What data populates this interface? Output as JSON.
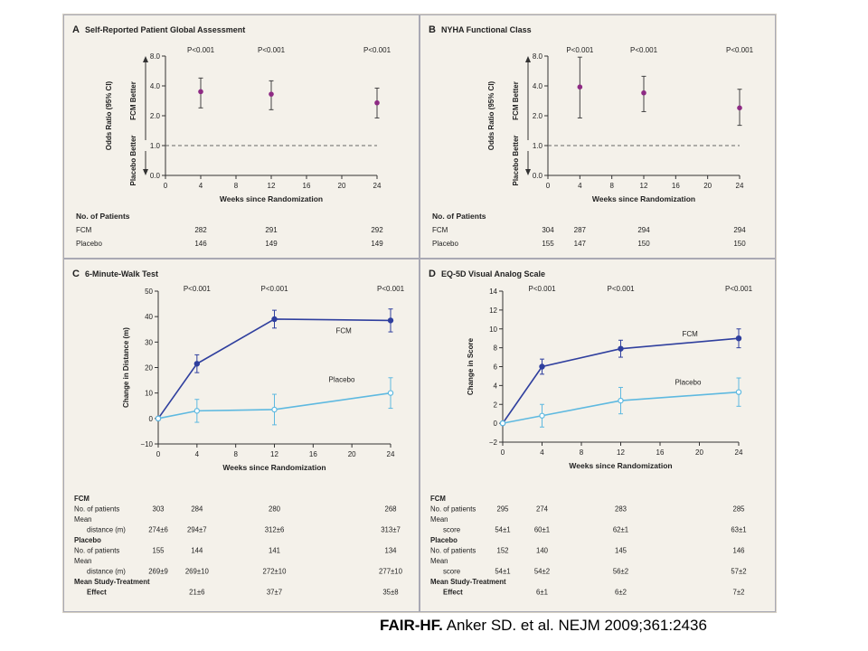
{
  "citation": {
    "study": "FAIR-HF.",
    "reference": "Anker SD. et al. NEJM 2009;361:2436"
  },
  "colors": {
    "purple": "#8e2a84",
    "fcm": "#2f3f9e",
    "placebo": "#5eb9e0",
    "frame": "#a9a9b4",
    "text": "#222222",
    "background": "#f4f1ea"
  },
  "chart_data": [
    {
      "panel": "A",
      "title": "Self-Reported Patient Global Assessment",
      "type": "scatter",
      "xlabel": "Weeks since Randomization",
      "ylabel": "Odds Ratio (95% CI)",
      "side_labels": {
        "upper": "FCM Better",
        "lower": "Placebo Better"
      },
      "xlim": [
        0,
        24
      ],
      "xticks": [
        0,
        4,
        8,
        12,
        16,
        20,
        24
      ],
      "ylim": [
        0,
        8
      ],
      "yscale": "log",
      "yticks": [
        "0.0",
        "1.0",
        "2.0",
        "4.0",
        "8.0"
      ],
      "reference_line": 1.0,
      "series": [
        {
          "x": [
            4,
            12,
            24
          ],
          "y": [
            3.5,
            3.3,
            2.7
          ],
          "lower": [
            2.4,
            2.3,
            1.9
          ],
          "upper": [
            4.8,
            4.5,
            3.8
          ]
        }
      ],
      "pvalues": [
        "P<0.001",
        "P<0.001",
        "P<0.001"
      ],
      "table": {
        "title": "No. of Patients",
        "rows": [
          {
            "label": "FCM",
            "values": [
              "282",
              "291",
              "292"
            ]
          },
          {
            "label": "Placebo",
            "values": [
              "146",
              "149",
              "149"
            ]
          }
        ]
      }
    },
    {
      "panel": "B",
      "title": "NYHA Functional Class",
      "type": "scatter",
      "xlabel": "Weeks since Randomization",
      "ylabel": "Odds Ratio (95% CI)",
      "side_labels": {
        "upper": "FCM Better",
        "lower": "Placebo Better"
      },
      "xlim": [
        0,
        24
      ],
      "xticks": [
        0,
        4,
        8,
        12,
        16,
        20,
        24
      ],
      "ylim": [
        0,
        8
      ],
      "yscale": "log",
      "yticks": [
        "0.0",
        "1.0",
        "2.0",
        "4.0",
        "8.0"
      ],
      "reference_line": 1.0,
      "series": [
        {
          "x": [
            4,
            12,
            24
          ],
          "y": [
            3.9,
            3.4,
            2.4
          ],
          "lower": [
            1.9,
            2.2,
            1.6
          ],
          "upper": [
            7.8,
            5.0,
            3.7
          ]
        }
      ],
      "pvalues": [
        "P<0.001",
        "P<0.001",
        "P<0.001"
      ],
      "table": {
        "title": "No. of Patients",
        "rows": [
          {
            "label": "FCM",
            "values": [
              "304",
              "287",
              "294",
              "294"
            ]
          },
          {
            "label": "Placebo",
            "values": [
              "155",
              "147",
              "150",
              "150"
            ]
          }
        ]
      }
    },
    {
      "panel": "C",
      "title": "6-Minute-Walk Test",
      "type": "line",
      "xlabel": "Weeks since Randomization",
      "ylabel": "Change in Distance (m)",
      "xlim": [
        0,
        24
      ],
      "xticks": [
        0,
        4,
        8,
        12,
        16,
        20,
        24
      ],
      "ylim": [
        -10,
        50
      ],
      "yticks": [
        -10,
        0,
        10,
        20,
        30,
        40,
        50
      ],
      "series": [
        {
          "name": "FCM",
          "x": [
            0,
            4,
            12,
            24
          ],
          "y": [
            0,
            21.5,
            39,
            38.5
          ],
          "err": [
            0,
            3.5,
            3.5,
            4.5
          ]
        },
        {
          "name": "Placebo",
          "x": [
            0,
            4,
            12,
            24
          ],
          "y": [
            0,
            3,
            3.5,
            10
          ],
          "err": [
            0,
            4.5,
            6,
            6
          ]
        }
      ],
      "pvalues": [
        "P<0.001",
        "P<0.001",
        "P<0.001"
      ],
      "table": [
        {
          "label": "FCM",
          "heading": true,
          "values": []
        },
        {
          "label": "No. of patients",
          "values": [
            "303",
            "284",
            "280",
            "268"
          ]
        },
        {
          "label": "Mean",
          "values": []
        },
        {
          "label": "distance (m)",
          "indent": true,
          "values": [
            "274±6",
            "294±7",
            "312±6",
            "313±7"
          ]
        },
        {
          "label": "Placebo",
          "heading": true,
          "values": []
        },
        {
          "label": "No. of patients",
          "values": [
            "155",
            "144",
            "141",
            "134"
          ]
        },
        {
          "label": "Mean",
          "values": []
        },
        {
          "label": "distance (m)",
          "indent": true,
          "values": [
            "269±9",
            "269±10",
            "272±10",
            "277±10"
          ]
        },
        {
          "label": "Mean Study-Treatment",
          "heading": true,
          "values": []
        },
        {
          "label": "Effect",
          "indent": true,
          "heading": true,
          "values": [
            "",
            "21±6",
            "37±7",
            "35±8"
          ]
        }
      ]
    },
    {
      "panel": "D",
      "title": "EQ-5D Visual Analog Scale",
      "type": "line",
      "xlabel": "Weeks since Randomization",
      "ylabel": "Change in Score",
      "xlim": [
        0,
        24
      ],
      "xticks": [
        0,
        4,
        8,
        12,
        16,
        20,
        24
      ],
      "ylim": [
        -2,
        14
      ],
      "yticks": [
        -2,
        0,
        2,
        4,
        6,
        8,
        10,
        12,
        14
      ],
      "series": [
        {
          "name": "FCM",
          "x": [
            0,
            4,
            12,
            24
          ],
          "y": [
            0,
            6,
            7.9,
            9
          ],
          "err": [
            0,
            0.8,
            0.9,
            1.0
          ]
        },
        {
          "name": "Placebo",
          "x": [
            0,
            4,
            12,
            24
          ],
          "y": [
            0,
            0.8,
            2.4,
            3.3
          ],
          "err": [
            0,
            1.2,
            1.4,
            1.5
          ]
        }
      ],
      "pvalues": [
        "P<0.001",
        "P<0.001",
        "P<0.001"
      ],
      "table": [
        {
          "label": "FCM",
          "heading": true,
          "values": []
        },
        {
          "label": "No. of patients",
          "values": [
            "295",
            "274",
            "283",
            "285"
          ]
        },
        {
          "label": "Mean",
          "values": []
        },
        {
          "label": "score",
          "indent": true,
          "values": [
            "54±1",
            "60±1",
            "62±1",
            "63±1"
          ]
        },
        {
          "label": "Placebo",
          "heading": true,
          "values": []
        },
        {
          "label": "No. of patients",
          "values": [
            "152",
            "140",
            "145",
            "146"
          ]
        },
        {
          "label": "Mean",
          "values": []
        },
        {
          "label": "score",
          "indent": true,
          "values": [
            "54±1",
            "54±2",
            "56±2",
            "57±2"
          ]
        },
        {
          "label": "Mean Study-Treatment",
          "heading": true,
          "values": []
        },
        {
          "label": "Effect",
          "indent": true,
          "heading": true,
          "values": [
            "",
            "6±1",
            "6±2",
            "7±2"
          ]
        }
      ]
    }
  ]
}
